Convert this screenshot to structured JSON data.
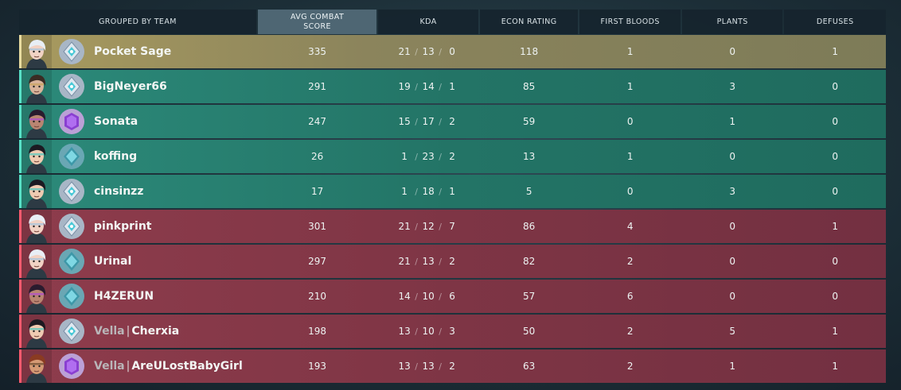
{
  "header": {
    "team": "GROUPED BY TEAM",
    "acs_line1": "AVG COMBAT",
    "acs_line2": "SCORE",
    "kda": "KDA",
    "econ": "ECON RATING",
    "first_bloods": "FIRST BLOODS",
    "plants": "PLANTS",
    "defuses": "DEFUSES"
  },
  "colors": {
    "highlight_row": "#8b845c",
    "team_a": "#237466",
    "team_b": "#7e3545"
  },
  "players": [
    {
      "tag": "",
      "name": "Pocket Sage",
      "acs": "335",
      "k": "21",
      "d": "13",
      "a": "0",
      "econ": "118",
      "fb": "1",
      "plants": "0",
      "defuses": "1",
      "agent_icon": "agent-portrait-jett-icon",
      "rank_icon": "rank-diamond-icon"
    },
    {
      "tag": "",
      "name": "BigNeyer66",
      "acs": "291",
      "k": "19",
      "d": "14",
      "a": "1",
      "econ": "85",
      "fb": "1",
      "plants": "3",
      "defuses": "0",
      "agent_icon": "agent-portrait-chamber-icon",
      "rank_icon": "rank-diamond-icon"
    },
    {
      "tag": "",
      "name": "Sonata",
      "acs": "247",
      "k": "15",
      "d": "17",
      "a": "2",
      "econ": "59",
      "fb": "0",
      "plants": "1",
      "defuses": "0",
      "agent_icon": "agent-portrait-reyna-icon",
      "rank_icon": "rank-ascendant-icon"
    },
    {
      "tag": "",
      "name": "koffing",
      "acs": "26",
      "k": "1",
      "d": "23",
      "a": "2",
      "econ": "13",
      "fb": "1",
      "plants": "0",
      "defuses": "0",
      "agent_icon": "agent-portrait-sage-icon",
      "rank_icon": "rank-platinum-icon"
    },
    {
      "tag": "",
      "name": "cinsinzz",
      "acs": "17",
      "k": "1",
      "d": "18",
      "a": "1",
      "econ": "5",
      "fb": "0",
      "plants": "3",
      "defuses": "0",
      "agent_icon": "agent-portrait-sage-icon",
      "rank_icon": "rank-diamond-icon"
    },
    {
      "tag": "",
      "name": "pinkprint",
      "acs": "301",
      "k": "21",
      "d": "12",
      "a": "7",
      "econ": "86",
      "fb": "4",
      "plants": "0",
      "defuses": "1",
      "agent_icon": "agent-portrait-jett-icon",
      "rank_icon": "rank-diamond-icon"
    },
    {
      "tag": "",
      "name": "Urinal",
      "acs": "297",
      "k": "21",
      "d": "13",
      "a": "2",
      "econ": "82",
      "fb": "2",
      "plants": "0",
      "defuses": "0",
      "agent_icon": "agent-portrait-jett-icon",
      "rank_icon": "rank-platinum-icon"
    },
    {
      "tag": "",
      "name": "H4ZERUN",
      "acs": "210",
      "k": "14",
      "d": "10",
      "a": "6",
      "econ": "57",
      "fb": "6",
      "plants": "0",
      "defuses": "0",
      "agent_icon": "agent-portrait-reyna-icon",
      "rank_icon": "rank-platinum-icon"
    },
    {
      "tag": "Vella",
      "name": "Cherxia",
      "acs": "198",
      "k": "13",
      "d": "10",
      "a": "3",
      "econ": "50",
      "fb": "2",
      "plants": "5",
      "defuses": "1",
      "agent_icon": "agent-portrait-sage-icon",
      "rank_icon": "rank-diamond-icon"
    },
    {
      "tag": "Vella",
      "name": "AreULostBabyGirl",
      "acs": "193",
      "k": "13",
      "d": "13",
      "a": "2",
      "econ": "63",
      "fb": "2",
      "plants": "1",
      "defuses": "1",
      "agent_icon": "agent-portrait-brimstone-icon",
      "rank_icon": "rank-ascendant-icon"
    }
  ]
}
